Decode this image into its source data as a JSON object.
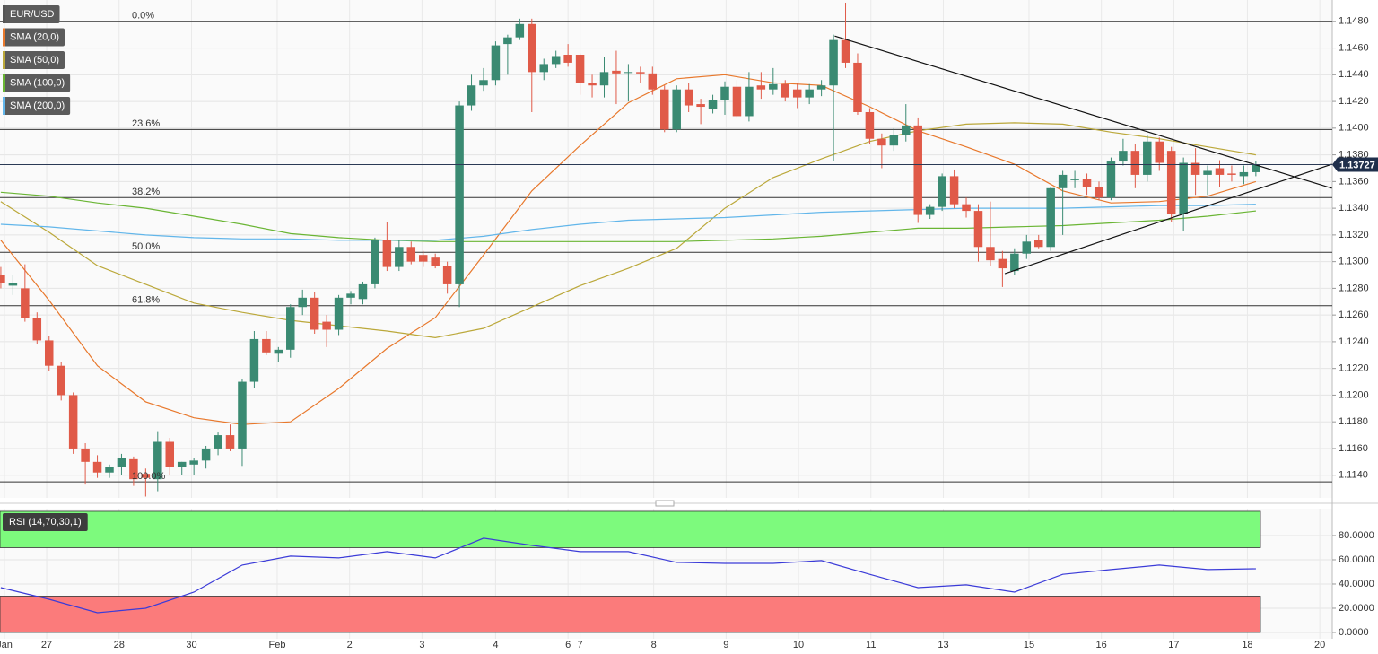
{
  "chart_data": [
    {
      "type": "candlestick",
      "title": "EUR/USD",
      "up_color": "#3a8a72",
      "down_color": "#e05a48",
      "open": [
        1.129,
        1.1282,
        1.128,
        1.1258,
        1.1241,
        1.1222,
        1.12,
        1.116,
        1.115,
        1.1142,
        1.1146,
        1.1152,
        1.1141,
        1.1137,
        1.1165,
        1.1146,
        1.1148,
        1.1151,
        1.116,
        1.117,
        1.116,
        1.121,
        1.1242,
        1.1231,
        1.1234,
        1.1266,
        1.1273,
        1.1255,
        1.1249,
        1.1273,
        1.1272,
        1.1283,
        1.1316,
        1.1296,
        1.1311,
        1.1305,
        1.1303,
        1.1297,
        1.1283,
        1.1417,
        1.1432,
        1.1436,
        1.1463,
        1.1468,
        1.1478,
        1.1442,
        1.1448,
        1.1455,
        1.1455,
        1.1434,
        1.1432,
        1.1443,
        1.1442,
        1.1442,
        1.1441,
        1.1429,
        1.1399,
        1.1429,
        1.1418,
        1.1414,
        1.1421,
        1.1431,
        1.1409,
        1.1432,
        1.1429,
        1.1433,
        1.1429,
        1.1423,
        1.1429,
        1.1432,
        1.1466,
        1.1449,
        1.1412,
        1.1392,
        1.1387,
        1.1395,
        1.1402,
        1.1335,
        1.1341,
        1.1364,
        1.1343,
        1.1338,
        1.1311,
        1.1302,
        1.1293,
        1.1306,
        1.1316,
        1.1311,
        1.1355,
        1.1361,
        1.1362,
        1.1356,
        1.1348,
        1.1375,
        1.1383,
        1.1365,
        1.139,
        1.1383,
        1.1336,
        1.1374,
        1.1365,
        1.137,
        1.1366,
        1.1364,
        1.1367
      ],
      "high": [
        1.1296,
        1.129,
        1.1298,
        1.1262,
        1.1244,
        1.1225,
        1.1202,
        1.1164,
        1.1155,
        1.1148,
        1.1156,
        1.1154,
        1.1145,
        1.1173,
        1.1168,
        1.115,
        1.1153,
        1.1162,
        1.1172,
        1.1178,
        1.1212,
        1.1248,
        1.1248,
        1.1236,
        1.1268,
        1.1279,
        1.1277,
        1.126,
        1.1275,
        1.1278,
        1.1285,
        1.1318,
        1.133,
        1.1316,
        1.1315,
        1.1308,
        1.1306,
        1.13,
        1.142,
        1.144,
        1.1445,
        1.1465,
        1.147,
        1.1482,
        1.1482,
        1.1452,
        1.1458,
        1.1463,
        1.1456,
        1.144,
        1.1453,
        1.1458,
        1.1448,
        1.1446,
        1.1446,
        1.1432,
        1.1432,
        1.1434,
        1.1422,
        1.1425,
        1.1435,
        1.1436,
        1.1442,
        1.1442,
        1.1445,
        1.1436,
        1.1434,
        1.1433,
        1.1436,
        1.147,
        1.1494,
        1.1456,
        1.1415,
        1.1396,
        1.14,
        1.1418,
        1.1408,
        1.1343,
        1.1366,
        1.1369,
        1.1348,
        1.1343,
        1.1345,
        1.1308,
        1.131,
        1.132,
        1.132,
        1.1356,
        1.1368,
        1.1368,
        1.1366,
        1.136,
        1.1378,
        1.1392,
        1.1388,
        1.1395,
        1.1393,
        1.1386,
        1.1378,
        1.1385,
        1.1372,
        1.1376,
        1.1372,
        1.1372,
        1.1375
      ],
      "low": [
        1.128,
        1.1275,
        1.1255,
        1.1238,
        1.1218,
        1.1196,
        1.1156,
        1.1133,
        1.1138,
        1.1138,
        1.114,
        1.1132,
        1.1124,
        1.1128,
        1.114,
        1.114,
        1.114,
        1.1145,
        1.1155,
        1.1158,
        1.1147,
        1.1205,
        1.123,
        1.1225,
        1.1228,
        1.126,
        1.1246,
        1.1236,
        1.1245,
        1.1268,
        1.1268,
        1.128,
        1.1293,
        1.1293,
        1.1298,
        1.1296,
        1.1295,
        1.1276,
        1.1266,
        1.1413,
        1.1428,
        1.1432,
        1.144,
        1.1466,
        1.1412,
        1.1436,
        1.1445,
        1.1446,
        1.1425,
        1.1423,
        1.1423,
        1.1418,
        1.142,
        1.1434,
        1.1425,
        1.1397,
        1.1397,
        1.1412,
        1.1403,
        1.1411,
        1.141,
        1.1408,
        1.1405,
        1.1422,
        1.1425,
        1.142,
        1.1415,
        1.1418,
        1.1424,
        1.1375,
        1.1445,
        1.141,
        1.1388,
        1.137,
        1.1383,
        1.139,
        1.1329,
        1.1332,
        1.1338,
        1.134,
        1.1333,
        1.13,
        1.1297,
        1.1281,
        1.129,
        1.1302,
        1.131,
        1.1308,
        1.132,
        1.1355,
        1.135,
        1.1346,
        1.1346,
        1.1372,
        1.1355,
        1.136,
        1.1368,
        1.133,
        1.1323,
        1.135,
        1.135,
        1.1356,
        1.136,
        1.1358,
        1.1364
      ],
      "close": [
        1.1284,
        1.1284,
        1.1258,
        1.1241,
        1.1222,
        1.12,
        1.116,
        1.115,
        1.1142,
        1.1146,
        1.1153,
        1.1137,
        1.1138,
        1.1165,
        1.1146,
        1.115,
        1.1151,
        1.116,
        1.117,
        1.116,
        1.121,
        1.1242,
        1.1232,
        1.1234,
        1.1266,
        1.1273,
        1.1249,
        1.1249,
        1.1273,
        1.1276,
        1.1283,
        1.1316,
        1.1296,
        1.1311,
        1.13,
        1.13,
        1.1297,
        1.1283,
        1.1417,
        1.1432,
        1.1436,
        1.1462,
        1.1468,
        1.1478,
        1.1442,
        1.1448,
        1.1454,
        1.1449,
        1.1434,
        1.1432,
        1.1442,
        1.1441,
        1.1442,
        1.1441,
        1.1429,
        1.1399,
        1.1429,
        1.1417,
        1.1416,
        1.1421,
        1.1431,
        1.1409,
        1.1431,
        1.1429,
        1.1433,
        1.1423,
        1.1423,
        1.1429,
        1.1432,
        1.1466,
        1.1449,
        1.1412,
        1.1392,
        1.1387,
        1.1395,
        1.1402,
        1.1335,
        1.1341,
        1.1364,
        1.1343,
        1.1338,
        1.1311,
        1.1301,
        1.1295,
        1.1306,
        1.1315,
        1.1311,
        1.1355,
        1.1365,
        1.1362,
        1.1356,
        1.1348,
        1.1375,
        1.1383,
        1.1365,
        1.139,
        1.1374,
        1.1336,
        1.1374,
        1.1365,
        1.1368,
        1.1365,
        1.1365,
        1.1367,
        1.1373
      ],
      "series": [
        {
          "name": "SMA (20,0)",
          "color": "#e8782c",
          "x": [
            0,
            4,
            8,
            12,
            16,
            20,
            24,
            28,
            32,
            36,
            40,
            44,
            48,
            52,
            56,
            60,
            64,
            68,
            72,
            76,
            80,
            84,
            88,
            92,
            96,
            100,
            104
          ],
          "values": [
            1.1316,
            1.1271,
            1.1222,
            1.1195,
            1.1183,
            1.1178,
            1.118,
            1.1205,
            1.1235,
            1.1258,
            1.1305,
            1.1353,
            1.1387,
            1.1419,
            1.1437,
            1.144,
            1.1434,
            1.1432,
            1.1416,
            1.1398,
            1.1386,
            1.1373,
            1.1353,
            1.1344,
            1.1345,
            1.1349,
            1.136
          ]
        },
        {
          "name": "SMA (50,0)",
          "color": "#bba83a",
          "x": [
            0,
            4,
            8,
            12,
            16,
            20,
            24,
            28,
            32,
            36,
            40,
            44,
            48,
            52,
            56,
            60,
            64,
            68,
            72,
            76,
            80,
            84,
            88,
            92,
            96,
            100,
            104
          ],
          "values": [
            1.1345,
            1.1322,
            1.1297,
            1.1283,
            1.1269,
            1.1262,
            1.1256,
            1.1252,
            1.1248,
            1.1243,
            1.125,
            1.1266,
            1.1282,
            1.1295,
            1.131,
            1.134,
            1.1363,
            1.1377,
            1.139,
            1.1398,
            1.1403,
            1.1404,
            1.1403,
            1.1397,
            1.1392,
            1.1386,
            1.138
          ]
        },
        {
          "name": "SMA (100,0)",
          "color": "#6ab534",
          "x": [
            0,
            4,
            8,
            12,
            16,
            20,
            24,
            28,
            32,
            36,
            40,
            44,
            48,
            52,
            56,
            60,
            64,
            68,
            72,
            76,
            80,
            84,
            88,
            92,
            96,
            100,
            104
          ],
          "values": [
            1.1352,
            1.1349,
            1.1344,
            1.134,
            1.1334,
            1.1328,
            1.1321,
            1.1318,
            1.1316,
            1.1315,
            1.1315,
            1.1315,
            1.1315,
            1.1315,
            1.1315,
            1.1316,
            1.1317,
            1.1319,
            1.1322,
            1.1325,
            1.1325,
            1.1326,
            1.1327,
            1.1329,
            1.1331,
            1.1334,
            1.1338
          ]
        },
        {
          "name": "SMA (200,0)",
          "color": "#62b6ea",
          "x": [
            0,
            4,
            8,
            12,
            16,
            20,
            24,
            28,
            32,
            36,
            40,
            44,
            48,
            52,
            56,
            60,
            64,
            68,
            72,
            76,
            80,
            84,
            88,
            92,
            96,
            100,
            104
          ],
          "values": [
            1.1328,
            1.1326,
            1.1323,
            1.132,
            1.1318,
            1.1317,
            1.1317,
            1.1316,
            1.1316,
            1.1316,
            1.1319,
            1.1324,
            1.1328,
            1.1331,
            1.1332,
            1.1333,
            1.1335,
            1.1337,
            1.1338,
            1.1339,
            1.134,
            1.134,
            1.134,
            1.1341,
            1.1342,
            1.1342,
            1.1343
          ]
        }
      ],
      "fibonacci": [
        {
          "value": 1.148,
          "label": "0.0%"
        },
        {
          "value": 1.1399,
          "label": "23.6%"
        },
        {
          "value": 1.1348,
          "label": "38.2%"
        },
        {
          "value": 1.1307,
          "label": "50.0%"
        },
        {
          "value": 1.1267,
          "label": "61.8%"
        },
        {
          "value": 1.1135,
          "label": "100.0%"
        }
      ],
      "trendlines": [
        {
          "x": [
            69.1,
            110.3
          ],
          "values": [
            1.1469,
            1.1355
          ]
        },
        {
          "x": [
            83.2,
            110.3
          ],
          "values": [
            1.1291,
            1.1373
          ]
        }
      ],
      "last_price": {
        "value": 1.13727,
        "label": "1.13727"
      },
      "xlim": [
        -0.07,
        110.33
      ],
      "xticks": [
        {
          "value": 0.3,
          "label": "Jan"
        },
        {
          "value": 3.8,
          "label": "27"
        },
        {
          "value": 9.8,
          "label": "28"
        },
        {
          "value": 15.8,
          "label": "30"
        },
        {
          "value": 22.9,
          "label": "Feb"
        },
        {
          "value": 28.9,
          "label": "2"
        },
        {
          "value": 34.9,
          "label": "3"
        },
        {
          "value": 41.0,
          "label": "4"
        },
        {
          "value": 47.0,
          "label": "6"
        },
        {
          "value": 48.0,
          "label": "7"
        },
        {
          "value": 54.1,
          "label": "8"
        },
        {
          "value": 60.1,
          "label": "9"
        },
        {
          "value": 66.1,
          "label": "10"
        },
        {
          "value": 72.1,
          "label": "11"
        },
        {
          "value": 78.1,
          "label": "13"
        },
        {
          "value": 85.2,
          "label": "15"
        },
        {
          "value": 91.2,
          "label": "16"
        },
        {
          "value": 97.2,
          "label": "17"
        },
        {
          "value": 103.3,
          "label": "18"
        },
        {
          "value": 109.3,
          "label": "20"
        }
      ],
      "ylim": [
        1.1123,
        1.1496
      ],
      "yticks": [
        {
          "value": 1.114,
          "label": "1.1140"
        },
        {
          "value": 1.116,
          "label": "1.1160"
        },
        {
          "value": 1.118,
          "label": "1.1180"
        },
        {
          "value": 1.12,
          "label": "1.1200"
        },
        {
          "value": 1.122,
          "label": "1.1220"
        },
        {
          "value": 1.124,
          "label": "1.1240"
        },
        {
          "value": 1.126,
          "label": "1.1260"
        },
        {
          "value": 1.128,
          "label": "1.1280"
        },
        {
          "value": 1.13,
          "label": "1.1300"
        },
        {
          "value": 1.132,
          "label": "1.1320"
        },
        {
          "value": 1.134,
          "label": "1.1340"
        },
        {
          "value": 1.136,
          "label": "1.1360"
        },
        {
          "value": 1.138,
          "label": "1.1380"
        },
        {
          "value": 1.14,
          "label": "1.1400"
        },
        {
          "value": 1.142,
          "label": "1.1420"
        },
        {
          "value": 1.144,
          "label": "1.1440"
        },
        {
          "value": 1.146,
          "label": "1.1460"
        },
        {
          "value": 1.148,
          "label": "1.1480"
        }
      ],
      "grid": true
    },
    {
      "type": "line",
      "title": "RSI (14,70,30,1)",
      "series": [
        {
          "color": "#3b3bd8",
          "x": [
            0,
            4,
            8,
            12,
            16,
            20,
            24,
            28,
            32,
            36,
            40,
            44,
            48,
            52,
            56,
            60,
            64,
            68,
            72,
            76,
            80,
            84,
            88,
            92,
            96,
            100,
            104
          ],
          "values": [
            37,
            27.4,
            16.3,
            20,
            33.3,
            55.6,
            63,
            61.5,
            66.7,
            61.5,
            77.8,
            71.9,
            66.7,
            66.7,
            57.8,
            57,
            57,
            59.3,
            48,
            37,
            39.3,
            33.3,
            48,
            51.9,
            55.6,
            51.9,
            52.6
          ]
        }
      ],
      "zones": [
        [
          70,
          100
        ],
        [
          0,
          30
        ]
      ],
      "zone_colors": [
        "#7dfa7d",
        "#fb7b7b"
      ],
      "xlim": [
        -0.07,
        110.33
      ],
      "ylim": [
        -5.2,
        102.2
      ],
      "yticks": [
        {
          "value": 0,
          "label": "0.0000"
        },
        {
          "value": 20,
          "label": "20.0000"
        },
        {
          "value": 40,
          "label": "40.0000"
        },
        {
          "value": 60,
          "label": "60.0000"
        },
        {
          "value": 80,
          "label": "80.0000"
        }
      ],
      "grid": true
    }
  ]
}
